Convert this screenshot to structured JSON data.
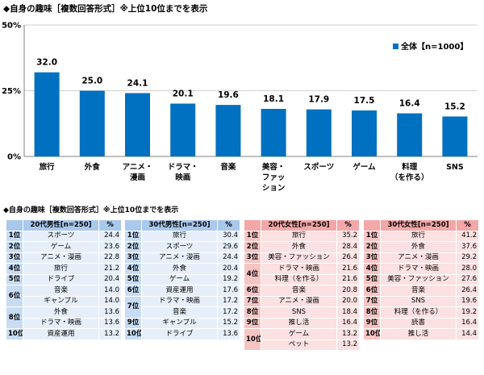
{
  "main_title": "◆自身の趣味［複数回答形式］※上位10位までを表示",
  "chart_data": {
    "type": "bar",
    "title": "◆自身の趣味［複数回答形式］※上位10位までを表示",
    "categories": [
      "旅行",
      "外食",
      "アニメ・漫画",
      "ドラマ・映画",
      "音楽",
      "美容・ファッション",
      "スポーツ",
      "ゲーム",
      "料理（を作る）",
      "SNS"
    ],
    "category_lines": [
      [
        "旅行"
      ],
      [
        "外食"
      ],
      [
        "アニメ・",
        "漫画"
      ],
      [
        "ドラマ・",
        "映画"
      ],
      [
        "音楽"
      ],
      [
        "美容・",
        "ファッ",
        "ション"
      ],
      [
        "スポーツ"
      ],
      [
        "ゲーム"
      ],
      [
        "料理",
        "（を作る）"
      ],
      [
        "SNS"
      ]
    ],
    "series": [
      {
        "name": "全体【n=1000】",
        "values": [
          32.0,
          25.0,
          24.1,
          20.1,
          19.6,
          18.1,
          17.9,
          17.5,
          16.4,
          15.2
        ]
      }
    ],
    "value_labels": [
      "32.0",
      "25.0",
      "24.1",
      "20.1",
      "19.6",
      "18.1",
      "17.9",
      "17.5",
      "16.4",
      "15.2"
    ],
    "ylim": [
      0,
      50
    ],
    "yticks": [
      0,
      25,
      50
    ],
    "ytick_labels": [
      "0%",
      "25%",
      "50%"
    ],
    "legend": "top-right",
    "colors": {
      "bar": "#0070c0",
      "axis": "#808080",
      "grid": "#bfbfbf"
    }
  },
  "tables_subtitle": "◆自身の趣味［複数回答形式］※上位10位までを表示",
  "tables": [
    {
      "color": "blue",
      "header": "20代男性[n=250]",
      "pct_header": "%",
      "rows": [
        {
          "rank": "1位",
          "span": 1,
          "item": "スポーツ",
          "pct": "24.4"
        },
        {
          "rank": "2位",
          "span": 1,
          "item": "ゲーム",
          "pct": "23.6"
        },
        {
          "rank": "3位",
          "span": 1,
          "item": "アニメ・漫画",
          "pct": "22.8"
        },
        {
          "rank": "4位",
          "span": 1,
          "item": "旅行",
          "pct": "21.2"
        },
        {
          "rank": "5位",
          "span": 1,
          "item": "ドライブ",
          "pct": "20.4"
        },
        {
          "rank": "6位",
          "span": 2,
          "item": "音楽",
          "pct": "14.0"
        },
        {
          "rank": null,
          "item": "ギャンブル",
          "pct": "14.0"
        },
        {
          "rank": "8位",
          "span": 2,
          "item": "外食",
          "pct": "13.6"
        },
        {
          "rank": null,
          "item": "ドラマ・映画",
          "pct": "13.6"
        },
        {
          "rank": "10位",
          "span": 1,
          "item": "資産運用",
          "pct": "13.2"
        }
      ]
    },
    {
      "color": "blue",
      "header": "30代男性[n=250]",
      "pct_header": "%",
      "rows": [
        {
          "rank": "1位",
          "span": 1,
          "item": "旅行",
          "pct": "30.4"
        },
        {
          "rank": "2位",
          "span": 1,
          "item": "スポーツ",
          "pct": "29.6"
        },
        {
          "rank": "3位",
          "span": 1,
          "item": "アニメ・漫画",
          "pct": "24.4"
        },
        {
          "rank": "4位",
          "span": 1,
          "item": "外食",
          "pct": "20.4"
        },
        {
          "rank": "5位",
          "span": 1,
          "item": "ゲーム",
          "pct": "19.2"
        },
        {
          "rank": "6位",
          "span": 1,
          "item": "資産運用",
          "pct": "17.6"
        },
        {
          "rank": "7位",
          "span": 2,
          "item": "ドラマ・映画",
          "pct": "17.2"
        },
        {
          "rank": null,
          "item": "音楽",
          "pct": "17.2"
        },
        {
          "rank": "9位",
          "span": 1,
          "item": "ギャンブル",
          "pct": "15.2"
        },
        {
          "rank": "10位",
          "span": 1,
          "item": "ドライブ",
          "pct": "13.6"
        }
      ]
    },
    {
      "color": "red",
      "header": "20代女性[n=250]",
      "pct_header": "%",
      "rows": [
        {
          "rank": "1位",
          "span": 1,
          "item": "旅行",
          "pct": "35.2"
        },
        {
          "rank": "2位",
          "span": 1,
          "item": "外食",
          "pct": "28.4"
        },
        {
          "rank": "3位",
          "span": 1,
          "item": "美容・ファッション",
          "pct": "26.4"
        },
        {
          "rank": "4位",
          "span": 2,
          "item": "ドラマ・映画",
          "pct": "21.6"
        },
        {
          "rank": null,
          "item": "料理（を作る）",
          "pct": "21.6"
        },
        {
          "rank": "6位",
          "span": 1,
          "item": "音楽",
          "pct": "20.8"
        },
        {
          "rank": "7位",
          "span": 1,
          "item": "アニメ・漫画",
          "pct": "20.0"
        },
        {
          "rank": "8位",
          "span": 1,
          "item": "SNS",
          "pct": "18.4"
        },
        {
          "rank": "9位",
          "span": 1,
          "item": "推し活",
          "pct": "16.4"
        },
        {
          "rank": "10位",
          "span": 2,
          "item": "ゲーム",
          "pct": "13.2"
        },
        {
          "rank": null,
          "item": "ペット",
          "pct": "13.2"
        }
      ]
    },
    {
      "color": "red",
      "header": "30代女性[n=250]",
      "pct_header": "%",
      "rows": [
        {
          "rank": "1位",
          "span": 1,
          "item": "旅行",
          "pct": "41.2"
        },
        {
          "rank": "2位",
          "span": 1,
          "item": "外食",
          "pct": "37.6"
        },
        {
          "rank": "3位",
          "span": 1,
          "item": "アニメ・漫画",
          "pct": "29.2"
        },
        {
          "rank": "4位",
          "span": 1,
          "item": "ドラマ・映画",
          "pct": "28.0"
        },
        {
          "rank": "5位",
          "span": 1,
          "item": "美容・ファッション",
          "pct": "27.6"
        },
        {
          "rank": "6位",
          "span": 1,
          "item": "音楽",
          "pct": "26.4"
        },
        {
          "rank": "7位",
          "span": 1,
          "item": "SNS",
          "pct": "19.6"
        },
        {
          "rank": "8位",
          "span": 1,
          "item": "料理（を作る）",
          "pct": "19.2"
        },
        {
          "rank": "9位",
          "span": 1,
          "item": "読書",
          "pct": "16.4"
        },
        {
          "rank": "10位",
          "span": 1,
          "item": "推し活",
          "pct": "14.4"
        }
      ]
    }
  ]
}
